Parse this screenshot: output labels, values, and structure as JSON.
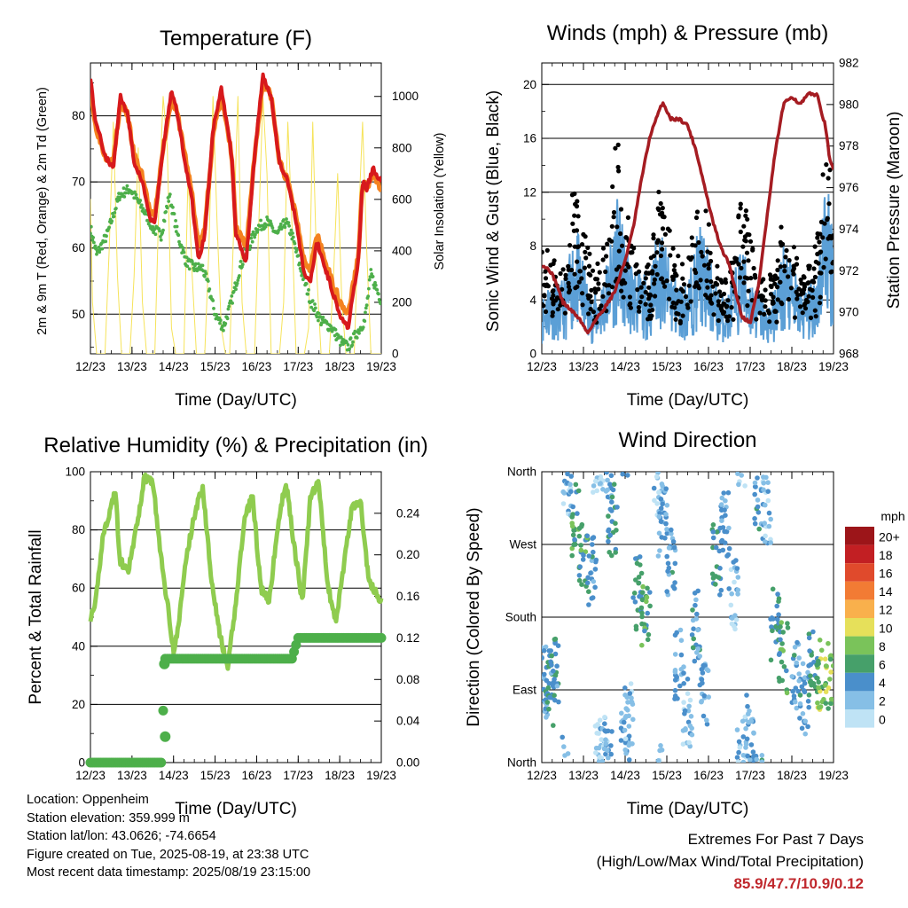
{
  "xticks": [
    "12/23",
    "13/23",
    "14/23",
    "15/23",
    "16/23",
    "17/23",
    "18/23",
    "19/23"
  ],
  "info": {
    "location": "Location: Oppenheim",
    "elevation": "Station elevation: 359.999 m",
    "latlon": "Station lat/lon: 43.0626; -74.6654",
    "created": "Figure created on Tue, 2025-08-19, at 23:38 UTC",
    "recent": "Most recent data timestamp: 2025/08/19 23:15:00"
  },
  "extremes": {
    "title": "Extremes For Past 7 Days",
    "subtitle": "(High/Low/Max Wind/Total Precipitation)",
    "value": "85.9/47.7/10.9/0.12"
  },
  "colors": {
    "temp2m": "#d7191c",
    "temp9m": "#f4821f",
    "dewpoint": "#4daf4a",
    "solar": "#f6e35a",
    "wind": "#5b9fd6",
    "gust": "#000000",
    "pressure": "#a51c22",
    "rh": "#8fcc4f",
    "precip": "#4daf4a"
  },
  "chart_data": [
    {
      "type": "line",
      "title": "Temperature (F)",
      "xlabel": "Time (Day/UTC)",
      "ylabel": "2m & 9m T (Red, Orange) & 2m Td (Green)",
      "ylabel2": "Solar Insolation (Yellow)",
      "xlim": [
        0,
        7
      ],
      "ylim": [
        44,
        88
      ],
      "y2lim": [
        0,
        1130
      ],
      "yticks": [
        50,
        60,
        70,
        80
      ],
      "y2ticks": [
        0,
        200,
        400,
        600,
        800,
        1000
      ],
      "series": [
        {
          "role": "temp2m",
          "x": [
            0,
            0.1,
            0.35,
            0.55,
            0.72,
            0.9,
            1.05,
            1.25,
            1.45,
            1.55,
            1.75,
            1.95,
            2.1,
            2.25,
            2.45,
            2.6,
            2.75,
            2.95,
            3.15,
            3.4,
            3.5,
            3.75,
            3.95,
            4.15,
            4.35,
            4.55,
            4.75,
            4.95,
            5.15,
            5.3,
            5.45,
            5.75,
            6.0,
            6.2,
            6.45,
            6.55,
            6.65,
            6.8,
            7.0
          ],
          "y": [
            86,
            80,
            74,
            72,
            83,
            80,
            73,
            70,
            64,
            64,
            75,
            84,
            80,
            74,
            67,
            58,
            62,
            78,
            84,
            74,
            62,
            58,
            74,
            86,
            83,
            73,
            70,
            64,
            56,
            55,
            61,
            55,
            50,
            48,
            58,
            70,
            69,
            72,
            70
          ]
        },
        {
          "role": "temp9m",
          "x": [
            0,
            0.1,
            0.35,
            0.55,
            0.72,
            0.9,
            1.05,
            1.25,
            1.45,
            1.55,
            1.75,
            1.95,
            2.1,
            2.25,
            2.45,
            2.6,
            2.75,
            2.95,
            3.15,
            3.4,
            3.5,
            3.75,
            3.95,
            4.15,
            4.35,
            4.55,
            4.75,
            4.95,
            5.15,
            5.3,
            5.45,
            5.75,
            6.0,
            6.2,
            6.45,
            6.55,
            6.65,
            6.8,
            7.0
          ],
          "y": [
            85,
            79,
            74,
            73,
            82,
            80,
            74,
            71,
            65,
            65,
            75,
            83,
            80,
            75,
            68,
            60,
            63,
            77,
            83,
            74,
            63,
            60,
            74,
            85,
            83,
            73,
            70,
            65,
            58,
            57,
            62,
            56,
            52,
            50,
            59,
            70,
            69,
            71,
            69
          ]
        },
        {
          "role": "dewpoint",
          "x": [
            0,
            0.15,
            0.4,
            0.7,
            0.95,
            1.15,
            1.35,
            1.5,
            1.7,
            1.9,
            2.1,
            2.3,
            2.5,
            2.7,
            2.85,
            3.0,
            3.2,
            3.4,
            3.6,
            3.8,
            4.0,
            4.25,
            4.5,
            4.7,
            4.85,
            5.05,
            5.3,
            5.55,
            5.8,
            6.0,
            6.2,
            6.4,
            6.6,
            6.75,
            7.0
          ],
          "y": [
            63,
            59,
            62,
            68,
            69,
            67,
            65,
            63,
            62,
            68,
            62,
            58,
            57,
            57,
            54,
            50,
            48,
            52,
            57,
            60,
            63,
            64,
            62,
            64,
            62,
            57,
            52,
            49,
            48,
            46,
            45,
            47,
            49,
            56,
            52
          ]
        },
        {
          "role": "solar",
          "x": [
            0,
            0.05,
            0.15,
            0.25,
            0.35,
            0.45,
            0.55,
            0.65,
            0.75,
            0.85,
            0.95,
            1.05,
            1.15,
            1.25,
            1.35,
            1.45,
            1.55,
            1.65,
            1.75,
            1.85,
            1.95,
            2.05,
            2.15,
            2.25,
            2.35,
            2.45,
            2.55,
            2.65,
            2.75,
            2.85,
            2.95,
            3.05,
            3.15,
            3.25,
            3.35,
            3.45,
            3.55,
            3.65,
            3.75,
            3.85,
            3.95,
            4.05,
            4.15,
            4.25,
            4.35,
            4.45,
            4.55,
            4.65,
            4.75,
            4.85,
            4.95,
            5.05,
            5.15,
            5.25,
            5.35,
            5.45,
            5.55,
            5.65,
            5.75,
            5.85,
            5.95,
            6.05,
            6.15,
            6.25,
            6.35,
            6.45,
            6.55,
            6.65,
            6.75,
            6.85,
            6.95,
            7.0
          ],
          "y": [
            600,
            200,
            0,
            0,
            0,
            400,
            900,
            300,
            0,
            0,
            0,
            300,
            800,
            200,
            0,
            0,
            0,
            600,
            1000,
            800,
            100,
            0,
            0,
            0,
            700,
            300,
            0,
            0,
            0,
            400,
            1000,
            500,
            100,
            0,
            0,
            500,
            1000,
            200,
            0,
            0,
            0,
            500,
            1000,
            700,
            0,
            0,
            0,
            200,
            900,
            500,
            0,
            0,
            0,
            100,
            900,
            300,
            0,
            0,
            0,
            300,
            700,
            200,
            0,
            0,
            0,
            500,
            900,
            400,
            0,
            0,
            0,
            0
          ]
        }
      ]
    },
    {
      "type": "line",
      "title": "Winds (mph) & Pressure (mb)",
      "xlabel": "Time (Day/UTC)",
      "ylabel": "Sonic Wind & Gust (Blue, Black)",
      "ylabel2": "Station Pressure (Maroon)",
      "xlim": [
        0,
        7
      ],
      "ylim": [
        0,
        21.6
      ],
      "y2lim": [
        968,
        982
      ],
      "yticks": [
        0,
        4,
        8,
        12,
        16,
        20
      ],
      "y2ticks": [
        968,
        970,
        972,
        974,
        976,
        978,
        980,
        982
      ],
      "series": [
        {
          "role": "wind",
          "x": [
            0,
            0.2,
            0.4,
            0.6,
            0.8,
            1.0,
            1.2,
            1.4,
            1.6,
            1.8,
            2.0,
            2.2,
            2.4,
            2.6,
            2.8,
            3.0,
            3.2,
            3.4,
            3.6,
            3.8,
            4.0,
            4.2,
            4.4,
            4.6,
            4.8,
            5.0,
            5.2,
            5.4,
            5.6,
            5.8,
            6.0,
            6.2,
            6.4,
            6.6,
            6.8,
            7.0
          ],
          "y": [
            2.5,
            3.5,
            3,
            3.5,
            6,
            4,
            2.5,
            3,
            4.5,
            7,
            5,
            4,
            3.5,
            3.5,
            6,
            4.5,
            3.5,
            3,
            4,
            6,
            4.5,
            3,
            2.5,
            3.5,
            5,
            3.5,
            3,
            2,
            3,
            5,
            4,
            3,
            3,
            4,
            8,
            6
          ]
        },
        {
          "role": "gust",
          "x": [
            0,
            0.2,
            0.4,
            0.6,
            0.8,
            1.0,
            1.2,
            1.4,
            1.6,
            1.8,
            2.0,
            2.2,
            2.4,
            2.6,
            2.8,
            3.0,
            3.2,
            3.4,
            3.6,
            3.8,
            4.0,
            4.2,
            4.4,
            4.6,
            4.8,
            5.0,
            5.2,
            5.4,
            5.6,
            5.8,
            6.0,
            6.2,
            6.4,
            6.6,
            6.8,
            7.0
          ],
          "y": [
            10,
            7,
            6,
            7,
            13,
            9,
            6,
            7,
            9,
            15,
            10,
            8,
            6,
            7,
            11,
            9,
            7,
            6,
            8,
            12,
            9,
            6,
            5,
            7,
            12,
            8,
            6,
            5,
            6,
            10,
            8,
            6,
            6,
            8,
            14,
            12
          ]
        },
        {
          "role": "pressure",
          "x": [
            0,
            0.2,
            0.35,
            0.5,
            0.7,
            0.9,
            1.1,
            1.25,
            1.5,
            1.75,
            2.0,
            2.2,
            2.4,
            2.6,
            2.8,
            2.9,
            3.1,
            3.3,
            3.5,
            3.7,
            3.9,
            4.1,
            4.3,
            4.5,
            4.7,
            4.8,
            5.0,
            5.2,
            5.4,
            5.6,
            5.8,
            6.0,
            6.2,
            6.4,
            6.6,
            6.8,
            6.9,
            7.0
          ],
          "y": [
            972.3,
            972,
            971.4,
            970.5,
            970.1,
            969.7,
            969,
            969.5,
            970.2,
            971,
            972.5,
            974.1,
            976.5,
            978.5,
            979.6,
            980.1,
            979.3,
            979.3,
            979,
            977.8,
            976.1,
            974.4,
            973.1,
            972.3,
            970.6,
            969.8,
            969.5,
            971.3,
            974.5,
            977.7,
            980,
            980.4,
            980,
            980.5,
            980.5,
            979,
            977.5,
            976.8
          ]
        }
      ]
    },
    {
      "type": "line",
      "title": "Relative Humidity (%) & Precipitation (in)",
      "xlabel": "Time (Day/UTC)",
      "ylabel": "Percent & Total Rainfall",
      "xlim": [
        0,
        7
      ],
      "ylim": [
        0,
        100
      ],
      "y2lim": [
        0,
        0.28
      ],
      "yticks": [
        0,
        20,
        40,
        60,
        80,
        100
      ],
      "y2ticks": [
        0.0,
        0.04,
        0.08,
        0.12,
        0.16,
        0.2,
        0.24
      ],
      "series": [
        {
          "role": "rh",
          "x": [
            0,
            0.1,
            0.3,
            0.5,
            0.6,
            0.7,
            0.9,
            1.1,
            1.3,
            1.5,
            1.7,
            1.9,
            2.0,
            2.1,
            2.3,
            2.5,
            2.7,
            2.9,
            3.1,
            3.3,
            3.5,
            3.7,
            3.9,
            4.1,
            4.3,
            4.5,
            4.7,
            4.9,
            5.1,
            5.3,
            5.5,
            5.7,
            5.9,
            6.1,
            6.3,
            6.5,
            6.7,
            6.9,
            7.0
          ],
          "y": [
            50,
            52,
            78,
            88,
            94,
            70,
            65,
            80,
            98,
            97,
            70,
            50,
            38,
            45,
            70,
            85,
            95,
            65,
            45,
            32,
            55,
            83,
            92,
            60,
            55,
            80,
            97,
            75,
            55,
            92,
            96,
            62,
            48,
            68,
            88,
            90,
            62,
            58,
            55
          ]
        },
        {
          "role": "precip",
          "x": [
            0,
            1.45,
            1.7,
            1.8,
            3.0,
            4.85,
            5.0,
            6.0,
            7.0
          ],
          "y": [
            0.0,
            0.0,
            0.0,
            0.1,
            0.1,
            0.1,
            0.12,
            0.12,
            0.12
          ]
        }
      ]
    },
    {
      "type": "scatter",
      "title": "Wind Direction",
      "xlabel": "Time (Day/UTC)",
      "ylabel": "Direction (Colored By Speed)",
      "xlim": [
        0,
        7
      ],
      "ylim": [
        0,
        360
      ],
      "ytick_labels": [
        "North",
        "East",
        "South",
        "West",
        "North"
      ],
      "legend_title": "mph",
      "legend_labels": [
        "0",
        "2",
        "4",
        "6",
        "8",
        "10",
        "12",
        "14",
        "16",
        "18",
        "20+"
      ],
      "legend_colors": [
        "#bfe3f5",
        "#86bfe6",
        "#4a8fcb",
        "#46a06a",
        "#7ac35a",
        "#e6e05a",
        "#f9b04c",
        "#f27b34",
        "#e04a2c",
        "#c21f23",
        "#9c1519"
      ],
      "series": [
        {
          "name": "",
          "x": [
            0.1,
            0.2,
            0.3,
            0.6,
            0.8,
            1.0,
            1.2,
            1.3,
            1.5,
            1.6,
            1.7,
            2.0,
            2.1,
            2.3,
            2.5,
            2.8,
            2.9,
            3.1,
            3.3,
            3.5,
            3.7,
            3.9,
            4.2,
            4.4,
            4.6,
            4.8,
            5.0,
            5.2,
            5.4,
            5.6,
            5.8,
            6.1,
            6.3,
            6.5,
            6.7,
            6.9
          ],
          "y": [
            100,
            90,
            110,
            350,
            300,
            250,
            240,
            10,
            20,
            5,
            300,
            30,
            60,
            210,
            190,
            340,
            300,
            250,
            120,
            60,
            170,
            90,
            250,
            300,
            210,
            20,
            40,
            330,
            310,
            170,
            130,
            110,
            80,
            120,
            110,
            110
          ],
          "speed": [
            3,
            5,
            4,
            2,
            6,
            6,
            4,
            1,
            2,
            3,
            5,
            3,
            2,
            5,
            6,
            2,
            3,
            4,
            3,
            2,
            4,
            3,
            5,
            3,
            2,
            2,
            3,
            4,
            2,
            5,
            6,
            4,
            3,
            5,
            8,
            8
          ]
        }
      ]
    }
  ]
}
